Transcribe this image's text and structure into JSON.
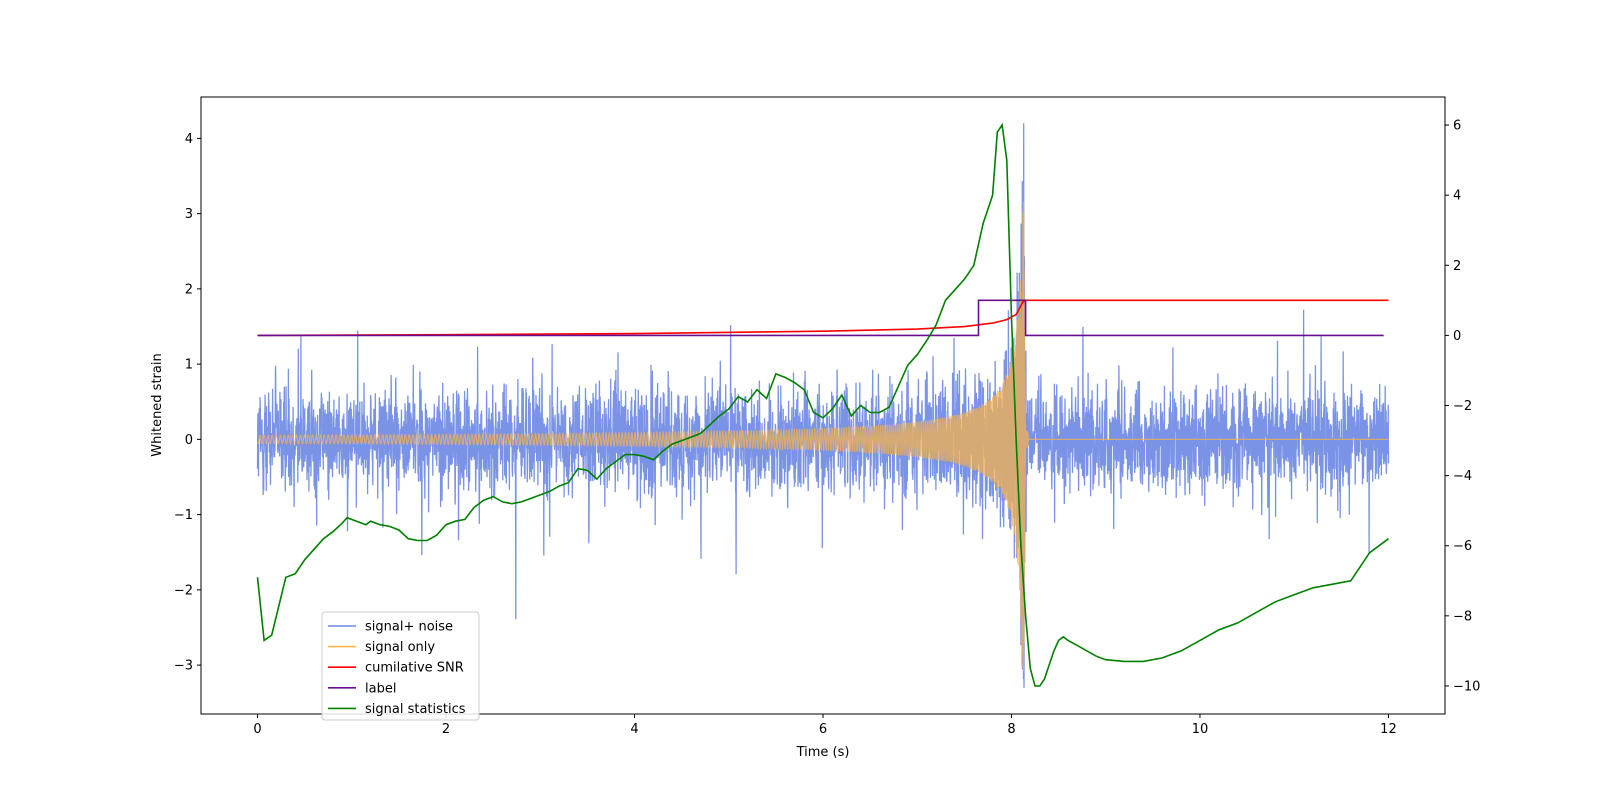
{
  "chart_data": {
    "type": "line",
    "title": "",
    "xlabel": "Time (s)",
    "ylabel": "Whitened strain",
    "y2label": "",
    "xlim": [
      -0.6,
      12.6
    ],
    "ylim": [
      -3.65,
      4.55
    ],
    "y2lim": [
      -10.8,
      6.8
    ],
    "x_ticks": [
      0,
      2,
      4,
      6,
      8,
      10,
      12
    ],
    "y_ticks": [
      -3,
      -2,
      -1,
      0,
      1,
      2,
      3,
      4
    ],
    "y2_ticks": [
      -10,
      -8,
      -6,
      -4,
      -2,
      0,
      2,
      4,
      6
    ],
    "grid": false,
    "legend_position": "lower-left",
    "colors": {
      "noise": "#6b87e3",
      "signal": "#f5b24f",
      "snr": "#ff0000",
      "label": "#6a0d91",
      "stats": "#008000"
    },
    "legend": [
      {
        "name": "signal+ noise",
        "color": "#6b87e3"
      },
      {
        "name": "signal only",
        "color": "#ffb74d"
      },
      {
        "name": "cumilative SNR",
        "color": "#ff0000"
      },
      {
        "name": "label",
        "color": "#6a0d91"
      },
      {
        "name": "signal statistics",
        "color": "#008000"
      }
    ],
    "series": [
      {
        "name": "signal+ noise",
        "axis": "left",
        "description_values": {
          "x_start": 0,
          "x_end": 12,
          "typical_range": [
            -1.5,
            1.6
          ],
          "max": 4.2,
          "min": -3.3,
          "spike_at": 8.13
        }
      },
      {
        "name": "signal only",
        "axis": "left",
        "chirp": {
          "x_start": 0,
          "x_merger": 8.13,
          "x_end": 12,
          "peak_amplitude": 3.2
        }
      },
      {
        "name": "cumilative SNR",
        "axis": "right",
        "x": [
          0,
          2,
          4,
          6,
          7,
          7.5,
          7.8,
          7.95,
          8.05,
          8.12,
          8.15,
          12
        ],
        "y": [
          0,
          0.02,
          0.05,
          0.12,
          0.18,
          0.25,
          0.35,
          0.45,
          0.6,
          0.95,
          1.0,
          1.0
        ]
      },
      {
        "name": "label",
        "axis": "right",
        "x": [
          0,
          7.65,
          7.65,
          8.15,
          8.15,
          11.95
        ],
        "y": [
          0,
          0,
          1,
          1,
          0,
          0
        ]
      },
      {
        "name": "signal statistics",
        "axis": "right",
        "x": [
          0,
          0.07,
          0.15,
          0.3,
          0.4,
          0.5,
          0.6,
          0.7,
          0.8,
          0.9,
          0.95,
          1.05,
          1.15,
          1.2,
          1.3,
          1.4,
          1.5,
          1.6,
          1.7,
          1.8,
          1.9,
          2.0,
          2.1,
          2.2,
          2.3,
          2.4,
          2.5,
          2.6,
          2.7,
          2.8,
          2.9,
          3.0,
          3.1,
          3.2,
          3.3,
          3.4,
          3.5,
          3.6,
          3.7,
          3.8,
          3.9,
          4.0,
          4.1,
          4.2,
          4.3,
          4.4,
          4.5,
          4.6,
          4.7,
          4.8,
          4.9,
          5.0,
          5.1,
          5.2,
          5.3,
          5.4,
          5.5,
          5.6,
          5.7,
          5.8,
          5.9,
          6.0,
          6.1,
          6.2,
          6.3,
          6.4,
          6.5,
          6.6,
          6.7,
          6.8,
          6.9,
          7.0,
          7.1,
          7.2,
          7.3,
          7.4,
          7.5,
          7.6,
          7.7,
          7.8,
          7.85,
          7.9,
          7.95,
          8.0,
          8.05,
          8.1,
          8.15,
          8.2,
          8.25,
          8.3,
          8.35,
          8.4,
          8.45,
          8.5,
          8.55,
          8.6,
          8.7,
          8.8,
          8.9,
          9.0,
          9.2,
          9.4,
          9.6,
          9.8,
          10.0,
          10.2,
          10.4,
          10.6,
          10.8,
          11.0,
          11.2,
          11.4,
          11.6,
          11.8,
          12.0
        ],
        "y": [
          -6.9,
          -8.7,
          -8.55,
          -6.9,
          -6.8,
          -6.4,
          -6.1,
          -5.8,
          -5.6,
          -5.35,
          -5.2,
          -5.3,
          -5.4,
          -5.3,
          -5.4,
          -5.45,
          -5.55,
          -5.8,
          -5.85,
          -5.85,
          -5.7,
          -5.4,
          -5.3,
          -5.25,
          -4.9,
          -4.7,
          -4.6,
          -4.75,
          -4.8,
          -4.75,
          -4.65,
          -4.55,
          -4.45,
          -4.3,
          -4.2,
          -3.8,
          -3.85,
          -4.1,
          -3.8,
          -3.6,
          -3.4,
          -3.4,
          -3.45,
          -3.55,
          -3.3,
          -3.1,
          -3.0,
          -2.9,
          -2.8,
          -2.55,
          -2.3,
          -2.1,
          -1.75,
          -1.9,
          -1.55,
          -1.8,
          -1.1,
          -1.2,
          -1.35,
          -1.55,
          -2.2,
          -2.35,
          -2.1,
          -1.7,
          -2.3,
          -2.0,
          -2.2,
          -2.2,
          -2.05,
          -1.45,
          -0.85,
          -0.55,
          -0.15,
          0.3,
          1.0,
          1.3,
          1.6,
          2.0,
          3.2,
          4.0,
          5.8,
          6.0,
          5.0,
          0.5,
          -3.0,
          -6.0,
          -8.0,
          -9.5,
          -10.0,
          -10.0,
          -9.8,
          -9.4,
          -9.0,
          -8.7,
          -8.6,
          -8.7,
          -8.85,
          -9.0,
          -9.15,
          -9.25,
          -9.3,
          -9.3,
          -9.2,
          -9.0,
          -8.7,
          -8.4,
          -8.2,
          -7.9,
          -7.6,
          -7.4,
          -7.2,
          -7.1,
          -7.0,
          -6.2,
          -5.8
        ]
      }
    ]
  }
}
